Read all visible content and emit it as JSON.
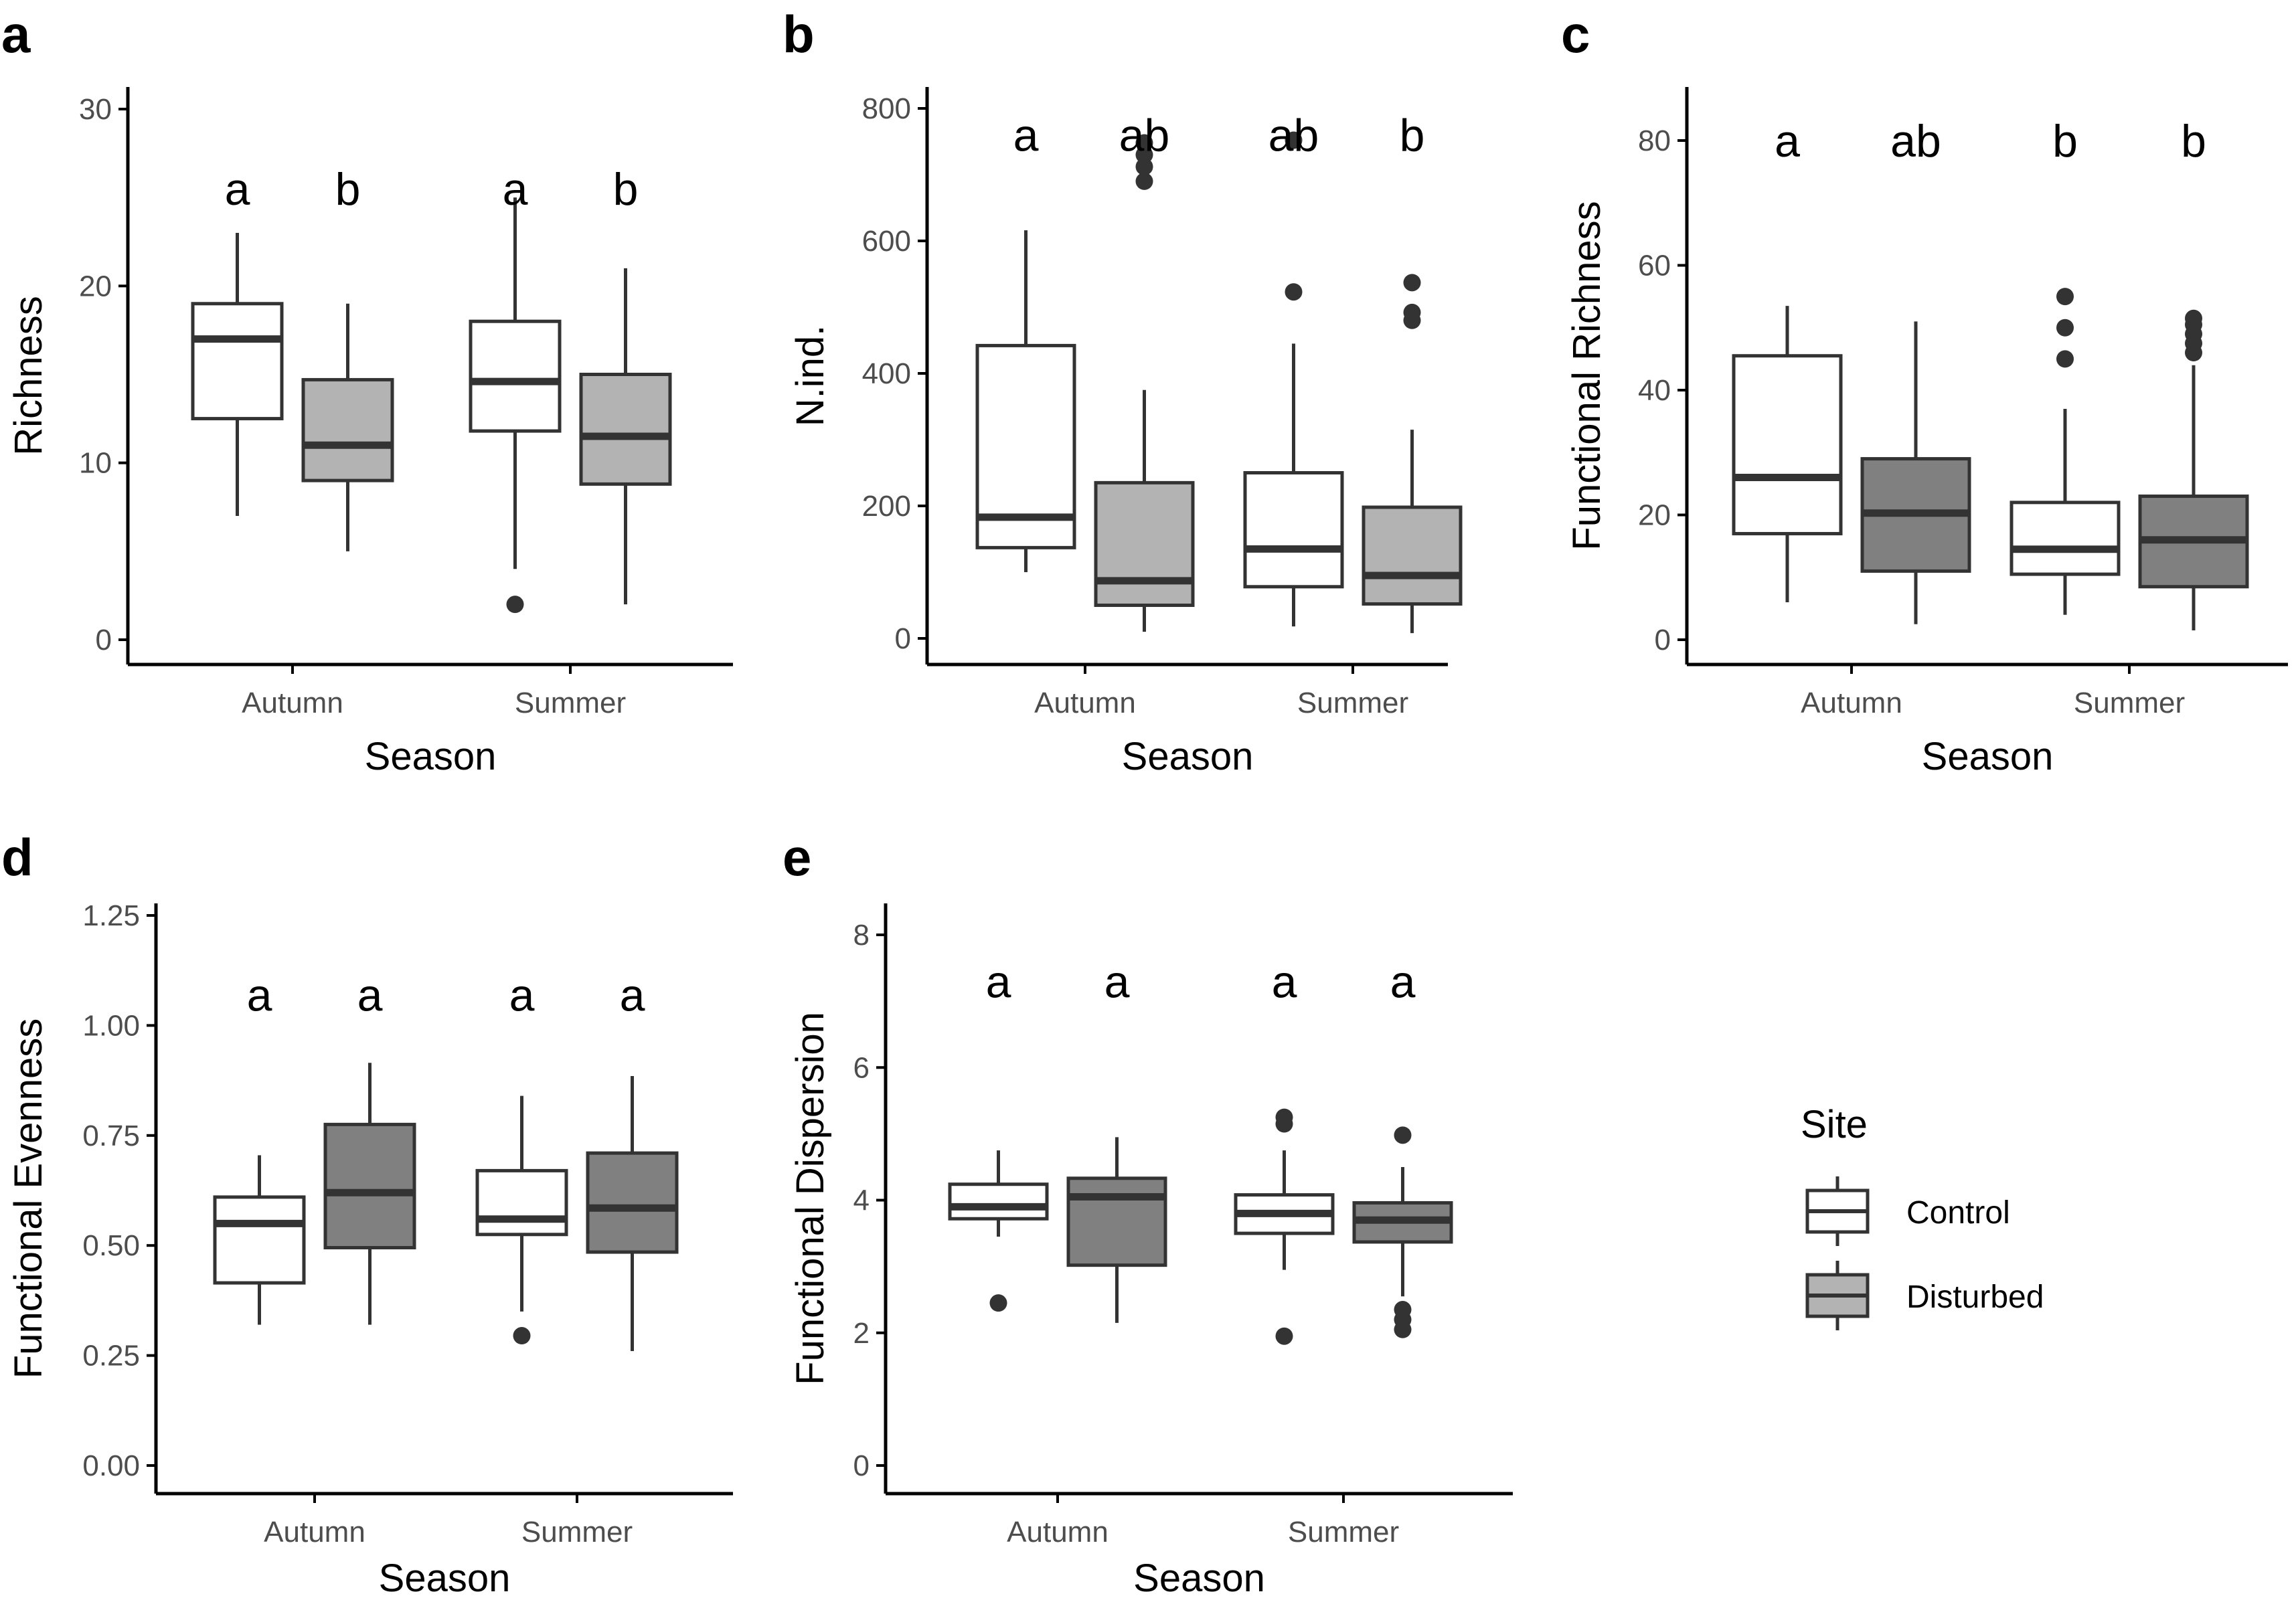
{
  "colors": {
    "control_fill": "#ffffff",
    "disturbed_fill_light": "#b3b3b3",
    "disturbed_fill_dark": "#808080",
    "outline": "#333333",
    "axis": "#000000",
    "tick_text": "#4d4d4d"
  },
  "legend": {
    "title": "Site",
    "items": [
      {
        "label": "Control",
        "fill": "#ffffff"
      },
      {
        "label": "Disturbed",
        "fill": "#b3b3b3"
      }
    ]
  },
  "chart_data": [
    {
      "panel": "a",
      "type": "boxplot",
      "xlabel": "Season",
      "ylabel": "Richness",
      "ylim": [
        0,
        30
      ],
      "yticks": [
        0,
        10,
        20,
        30
      ],
      "ytick_labels": [
        "0",
        "10",
        "20",
        "30"
      ],
      "categories": [
        "Autumn",
        "Summer"
      ],
      "disturbed_fill": "#b3b3b3",
      "boxes": [
        {
          "season": "Autumn",
          "site": "Control",
          "min": 7,
          "q1": 12.5,
          "median": 17,
          "q3": 19,
          "max": 23,
          "outliers": []
        },
        {
          "season": "Autumn",
          "site": "Disturbed",
          "min": 5,
          "q1": 9,
          "median": 11,
          "q3": 14.7,
          "max": 19,
          "outliers": []
        },
        {
          "season": "Summer",
          "site": "Control",
          "min": 4,
          "q1": 11.8,
          "median": 14.6,
          "q3": 18,
          "max": 25,
          "outliers": [
            2
          ]
        },
        {
          "season": "Summer",
          "site": "Disturbed",
          "min": 2,
          "q1": 8.8,
          "median": 11.5,
          "q3": 15,
          "max": 21,
          "outliers": []
        }
      ],
      "letters": [
        {
          "season": "Autumn",
          "site": "Control",
          "text": "a",
          "y": 25.5
        },
        {
          "season": "Autumn",
          "site": "Disturbed",
          "text": "b",
          "y": 25.5
        },
        {
          "season": "Summer",
          "site": "Control",
          "text": "a",
          "y": 25.5
        },
        {
          "season": "Summer",
          "site": "Disturbed",
          "text": "b",
          "y": 25.5
        }
      ]
    },
    {
      "panel": "b",
      "type": "boxplot",
      "xlabel": "Season",
      "ylabel": "N.ind.",
      "ylim": [
        0,
        800
      ],
      "yticks": [
        0,
        200,
        400,
        600,
        800
      ],
      "ytick_labels": [
        "0",
        "200",
        "400",
        "600",
        "800"
      ],
      "categories": [
        "Autumn",
        "Summer"
      ],
      "disturbed_fill": "#b3b3b3",
      "boxes": [
        {
          "season": "Autumn",
          "site": "Control",
          "min": 100,
          "q1": 137,
          "median": 183,
          "q3": 442,
          "max": 616,
          "outliers": []
        },
        {
          "season": "Autumn",
          "site": "Disturbed",
          "min": 10,
          "q1": 50,
          "median": 87,
          "q3": 235,
          "max": 375,
          "outliers": [
            690,
            712,
            730,
            748
          ]
        },
        {
          "season": "Summer",
          "site": "Control",
          "min": 18,
          "q1": 78,
          "median": 135,
          "q3": 250,
          "max": 445,
          "outliers": [
            523,
            752
          ]
        },
        {
          "season": "Summer",
          "site": "Disturbed",
          "min": 8,
          "q1": 52,
          "median": 95,
          "q3": 198,
          "max": 315,
          "outliers": [
            480,
            492,
            537
          ]
        }
      ],
      "letters": [
        {
          "season": "Autumn",
          "site": "Control",
          "text": "a",
          "y": 760
        },
        {
          "season": "Autumn",
          "site": "Disturbed",
          "text": "ab",
          "y": 760
        },
        {
          "season": "Summer",
          "site": "Control",
          "text": "ab",
          "y": 760
        },
        {
          "season": "Summer",
          "site": "Disturbed",
          "text": "b",
          "y": 760
        }
      ]
    },
    {
      "panel": "c",
      "type": "boxplot",
      "xlabel": "Season",
      "ylabel": "Functional Richness",
      "ylim": [
        0,
        80
      ],
      "yticks": [
        0,
        20,
        40,
        60,
        80
      ],
      "ytick_labels": [
        "0",
        "20",
        "40",
        "60",
        "80"
      ],
      "categories": [
        "Autumn",
        "Summer"
      ],
      "disturbed_fill": "#808080",
      "boxes": [
        {
          "season": "Autumn",
          "site": "Control",
          "min": 6,
          "q1": 17,
          "median": 26,
          "q3": 45.5,
          "max": 53.5,
          "outliers": []
        },
        {
          "season": "Autumn",
          "site": "Disturbed",
          "min": 2.5,
          "q1": 11,
          "median": 20.3,
          "q3": 29,
          "max": 51,
          "outliers": []
        },
        {
          "season": "Summer",
          "site": "Control",
          "min": 4,
          "q1": 10.5,
          "median": 14.5,
          "q3": 22,
          "max": 37,
          "outliers": [
            45,
            50,
            55
          ]
        },
        {
          "season": "Summer",
          "site": "Disturbed",
          "min": 1.5,
          "q1": 8.5,
          "median": 16,
          "q3": 23,
          "max": 44,
          "outliers": [
            46,
            47.5,
            49,
            50.5,
            51.5
          ]
        }
      ],
      "letters": [
        {
          "season": "Autumn",
          "site": "Control",
          "text": "a",
          "y": 80
        },
        {
          "season": "Autumn",
          "site": "Disturbed",
          "text": "ab",
          "y": 80
        },
        {
          "season": "Summer",
          "site": "Control",
          "text": "b",
          "y": 80
        },
        {
          "season": "Summer",
          "site": "Disturbed",
          "text": "b",
          "y": 80
        }
      ]
    },
    {
      "panel": "d",
      "type": "boxplot",
      "xlabel": "Season",
      "ylabel": "Functional Evenness",
      "ylim": [
        0,
        1.25
      ],
      "yticks": [
        0,
        0.25,
        0.5,
        0.75,
        1.0,
        1.25
      ],
      "ytick_labels": [
        "0.00",
        "0.25",
        "0.50",
        "0.75",
        "1.00",
        "1.25"
      ],
      "categories": [
        "Autumn",
        "Summer"
      ],
      "disturbed_fill": "#808080",
      "boxes": [
        {
          "season": "Autumn",
          "site": "Control",
          "min": 0.32,
          "q1": 0.415,
          "median": 0.55,
          "q3": 0.61,
          "max": 0.705,
          "outliers": []
        },
        {
          "season": "Autumn",
          "site": "Disturbed",
          "min": 0.32,
          "q1": 0.495,
          "median": 0.62,
          "q3": 0.775,
          "max": 0.915,
          "outliers": []
        },
        {
          "season": "Summer",
          "site": "Control",
          "min": 0.35,
          "q1": 0.525,
          "median": 0.56,
          "q3": 0.67,
          "max": 0.84,
          "outliers": [
            0.295
          ]
        },
        {
          "season": "Summer",
          "site": "Disturbed",
          "min": 0.26,
          "q1": 0.485,
          "median": 0.585,
          "q3": 0.71,
          "max": 0.885,
          "outliers": []
        }
      ],
      "letters": [
        {
          "season": "Autumn",
          "site": "Control",
          "text": "a",
          "y": 1.07
        },
        {
          "season": "Autumn",
          "site": "Disturbed",
          "text": "a",
          "y": 1.07
        },
        {
          "season": "Summer",
          "site": "Control",
          "text": "a",
          "y": 1.07
        },
        {
          "season": "Summer",
          "site": "Disturbed",
          "text": "a",
          "y": 1.07
        }
      ]
    },
    {
      "panel": "e",
      "type": "boxplot",
      "xlabel": "Season",
      "ylabel": "Functional Dispersion",
      "ylim": [
        0,
        8
      ],
      "yticks": [
        0,
        2,
        4,
        6,
        8
      ],
      "ytick_labels": [
        "0",
        "2",
        "4",
        "6",
        "8"
      ],
      "categories": [
        "Autumn",
        "Summer"
      ],
      "disturbed_fill": "#808080",
      "boxes": [
        {
          "season": "Autumn",
          "site": "Control",
          "min": 3.45,
          "q1": 3.72,
          "median": 3.9,
          "q3": 4.24,
          "max": 4.75,
          "outliers": [
            2.45
          ]
        },
        {
          "season": "Autumn",
          "site": "Disturbed",
          "min": 2.15,
          "q1": 3.02,
          "median": 4.05,
          "q3": 4.33,
          "max": 4.95,
          "outliers": []
        },
        {
          "season": "Summer",
          "site": "Control",
          "min": 2.95,
          "q1": 3.5,
          "median": 3.8,
          "q3": 4.08,
          "max": 4.75,
          "outliers": [
            1.95,
            5.15,
            5.25
          ]
        },
        {
          "season": "Summer",
          "site": "Disturbed",
          "min": 2.55,
          "q1": 3.37,
          "median": 3.7,
          "q3": 3.96,
          "max": 4.5,
          "outliers": [
            2.05,
            2.2,
            2.35,
            4.98
          ]
        }
      ],
      "letters": [
        {
          "season": "Autumn",
          "site": "Control",
          "text": "a",
          "y": 7.3
        },
        {
          "season": "Autumn",
          "site": "Disturbed",
          "text": "a",
          "y": 7.3
        },
        {
          "season": "Summer",
          "site": "Control",
          "text": "a",
          "y": 7.3
        },
        {
          "season": "Summer",
          "site": "Disturbed",
          "text": "a",
          "y": 7.3
        }
      ]
    }
  ]
}
